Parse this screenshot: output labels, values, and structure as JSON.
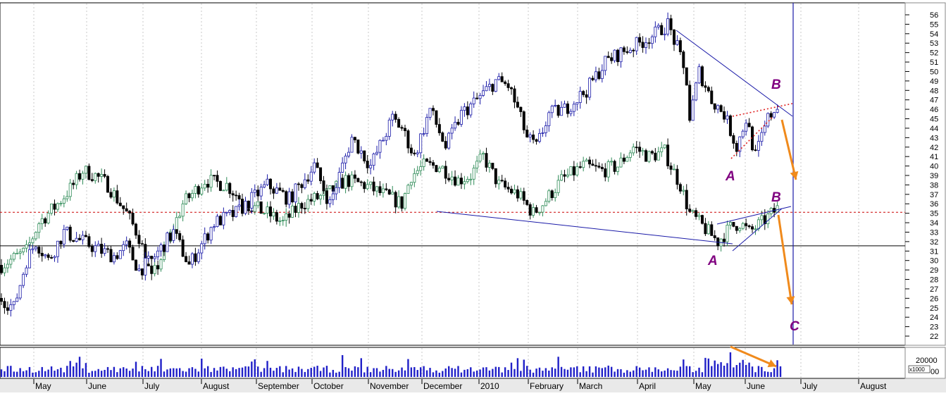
{
  "chart_data": {
    "type": "candlestick",
    "title": "",
    "x_months": [
      "May",
      "June",
      "July",
      "August",
      "September",
      "October",
      "November",
      "December",
      "2010",
      "February",
      "March",
      "April",
      "May",
      "June",
      "July",
      "August"
    ],
    "y_axis": {
      "min": 22,
      "max": 56,
      "ticks": [
        22,
        23,
        24,
        25,
        26,
        27,
        28,
        29,
        30,
        31,
        32,
        33,
        34,
        35,
        36,
        37,
        38,
        39,
        40,
        41,
        42,
        43,
        44,
        45,
        46,
        47,
        48,
        49,
        50,
        51,
        52,
        53,
        54,
        55,
        56
      ]
    },
    "grid": {
      "vertical": "dotted",
      "horizontal": false
    },
    "series": [
      {
        "color": "#1a1aa8",
        "style": "blue/black candles",
        "anchors": [
          [
            0,
            26
          ],
          [
            4,
            25
          ],
          [
            8,
            30
          ],
          [
            11,
            32
          ],
          [
            15,
            30
          ],
          [
            20,
            33
          ],
          [
            26,
            32
          ],
          [
            32,
            31
          ],
          [
            36,
            30.5
          ],
          [
            40,
            31.5
          ],
          [
            44,
            29
          ],
          [
            48,
            30
          ],
          [
            55,
            33
          ],
          [
            60,
            29.5
          ],
          [
            68,
            34
          ],
          [
            75,
            35
          ],
          [
            85,
            38
          ],
          [
            92,
            36.5
          ],
          [
            100,
            40
          ],
          [
            105,
            36
          ],
          [
            112,
            43
          ],
          [
            118,
            40
          ],
          [
            125,
            45
          ],
          [
            128,
            44
          ],
          [
            132,
            41
          ],
          [
            137,
            46
          ],
          [
            142,
            42
          ],
          [
            147,
            45.5
          ],
          [
            152,
            47
          ],
          [
            158,
            49
          ],
          [
            162,
            48.5
          ],
          [
            165,
            46
          ],
          [
            168,
            43
          ],
          [
            171,
            42
          ],
          [
            175,
            45.5
          ],
          [
            180,
            46
          ],
          [
            187,
            48
          ],
          [
            193,
            51
          ],
          [
            198,
            52
          ],
          [
            204,
            53
          ],
          [
            209,
            54
          ],
          [
            213,
            55
          ],
          [
            216,
            52.5
          ],
          [
            219,
            49
          ],
          [
            220,
            45
          ],
          [
            223,
            50
          ],
          [
            227,
            47
          ],
          [
            231,
            45.5
          ],
          [
            235,
            42
          ],
          [
            238,
            45
          ],
          [
            241,
            41
          ],
          [
            245,
            45
          ],
          [
            248,
            46.5
          ]
        ],
        "close_last": 46.5
      },
      {
        "color": "#2e8b57",
        "style": "green/black candles",
        "anchors": [
          [
            0,
            29.5
          ],
          [
            8,
            31
          ],
          [
            12,
            34
          ],
          [
            18,
            36
          ],
          [
            23,
            38
          ],
          [
            26,
            39.5
          ],
          [
            30,
            39
          ],
          [
            34,
            38
          ],
          [
            40,
            35
          ],
          [
            44,
            32.5
          ],
          [
            48,
            28
          ],
          [
            52,
            31
          ],
          [
            58,
            36
          ],
          [
            65,
            38.5
          ],
          [
            72,
            38
          ],
          [
            78,
            36
          ],
          [
            85,
            35
          ],
          [
            90,
            34
          ],
          [
            96,
            36
          ],
          [
            104,
            37
          ],
          [
            110,
            38.5
          ],
          [
            116,
            38
          ],
          [
            122,
            37
          ],
          [
            128,
            36
          ],
          [
            131,
            39
          ],
          [
            135,
            40
          ],
          [
            140,
            40
          ],
          [
            146,
            38.5
          ],
          [
            150,
            39
          ],
          [
            154,
            41
          ],
          [
            159,
            38
          ],
          [
            165,
            37
          ],
          [
            170,
            35
          ],
          [
            173,
            36
          ],
          [
            179,
            38.5
          ],
          [
            186,
            40
          ],
          [
            192,
            39.5
          ],
          [
            197,
            40
          ],
          [
            202,
            42
          ],
          [
            207,
            41
          ],
          [
            212,
            41.5
          ],
          [
            214,
            40
          ],
          [
            217,
            38
          ],
          [
            220,
            35
          ],
          [
            223,
            34
          ],
          [
            226,
            33
          ],
          [
            229,
            32
          ],
          [
            233,
            33.5
          ],
          [
            236,
            34
          ],
          [
            239,
            33
          ],
          [
            243,
            34
          ],
          [
            248,
            35.5
          ]
        ],
        "close_last": 35.5
      }
    ],
    "volume": {
      "axis_label": "20000",
      "multiplier": "x1000",
      "bar_count": 250
    },
    "annotations": [
      {
        "text": "B",
        "role": "upper pattern B"
      },
      {
        "text": "A",
        "role": "upper pattern A"
      },
      {
        "text": "B",
        "role": "lower pattern B"
      },
      {
        "text": "A",
        "role": "lower pattern A"
      },
      {
        "text": "C",
        "role": "target C"
      }
    ],
    "reference_lines": [
      {
        "price": 35.1,
        "style": "dashed",
        "color": "#cc0000"
      },
      {
        "price": 31.55,
        "style": "solid",
        "color": "#000000"
      }
    ]
  }
}
